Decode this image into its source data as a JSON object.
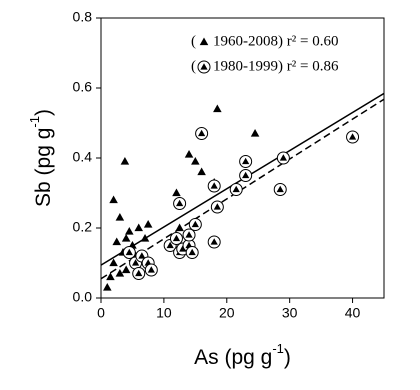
{
  "chart_data": {
    "type": "scatter",
    "x_label": "As (pg g",
    "x_label_sup": "-1",
    "x_label_close": ")",
    "y_label": "Sb (pg g",
    "y_label_sup": "-1",
    "y_label_close": ")",
    "legend_open": "(",
    "xlim": [
      0,
      45
    ],
    "xticks": [
      0,
      10,
      20,
      30,
      40
    ],
    "ylim": [
      0,
      0.8
    ],
    "yticks": [
      {
        "value": 0,
        "label": "0.0"
      },
      0.2,
      0.4,
      0.6,
      0.8
    ],
    "series": [
      {
        "name": "1960-2008",
        "fit_label": ") r² = 0.60",
        "marker": "triangle",
        "color": "#000000",
        "line_style": "solid",
        "fit": {
          "intercept": 0.094,
          "slope": 0.0109
        },
        "x": [
          1,
          1.5,
          2,
          2,
          2.5,
          3,
          3,
          3.5,
          3.8,
          4,
          4,
          4.5,
          5,
          5.5,
          6,
          7,
          7.5,
          11,
          12,
          12.5,
          14,
          15,
          16,
          18,
          18.5,
          24.5
        ],
        "values": [
          0.03,
          0.06,
          0.28,
          0.1,
          0.16,
          0.23,
          0.07,
          0.13,
          0.39,
          0.17,
          0.08,
          0.19,
          0.15,
          0.12,
          0.2,
          0.17,
          0.21,
          0.15,
          0.3,
          0.2,
          0.41,
          0.39,
          0.36,
          0.33,
          0.54,
          0.47
        ]
      },
      {
        "name": "1980-1999",
        "fit_label": ") r² = 0.86",
        "marker": "circle",
        "color": "#000000",
        "line_style": "dashed",
        "fit": {
          "intercept": 0.055,
          "slope": 0.0114
        },
        "x": [
          4.5,
          5.5,
          6,
          6.5,
          7.5,
          8,
          11,
          12,
          12.5,
          12.5,
          13,
          14,
          14,
          14.5,
          15,
          16,
          18,
          18,
          18.5,
          21.5,
          23,
          23,
          28.5,
          29,
          40
        ],
        "values": [
          0.13,
          0.1,
          0.07,
          0.12,
          0.1,
          0.08,
          0.15,
          0.17,
          0.27,
          0.13,
          0.14,
          0.15,
          0.18,
          0.13,
          0.21,
          0.47,
          0.32,
          0.16,
          0.26,
          0.31,
          0.39,
          0.35,
          0.31,
          0.4,
          0.46
        ]
      }
    ]
  }
}
